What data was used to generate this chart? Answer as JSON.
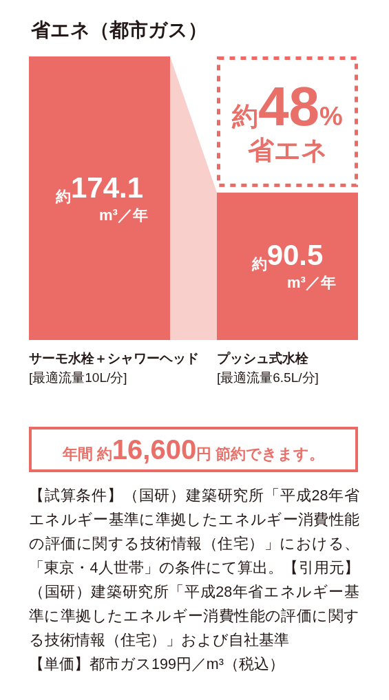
{
  "chart_data": {
    "type": "bar",
    "title": "省エネ（都市ガス）",
    "categories": [
      "サーモ水栓＋シャワーヘッド\n[最適流量10L/分]",
      "プッシュ式水栓\n[最適流量6.5L/分]"
    ],
    "values": [
      174.1,
      90.5
    ],
    "color": "#eb6c66",
    "value_labels": [
      "約174.1\nm³／年",
      "約90.5\nm³／年"
    ],
    "annotations": [
      "約48%\n省エネ",
      "年間 約16,600円 節約できます。",
      "【試算条件】（国研）建築研究所「平成28年省エネルギー基準に準拠したエネルギー消費性能の評価に関する技術情報（住宅）」における、「東京・4人世帯」の条件にて算出。【引用元】（国研）建築研究所「平成28年省エネルギー基準に準拠したエネルギー消費性能の評価に関する技術情報（住宅）」および自社基準",
      "【単価】都市ガス199円／m³（税込）"
    ]
  }
}
